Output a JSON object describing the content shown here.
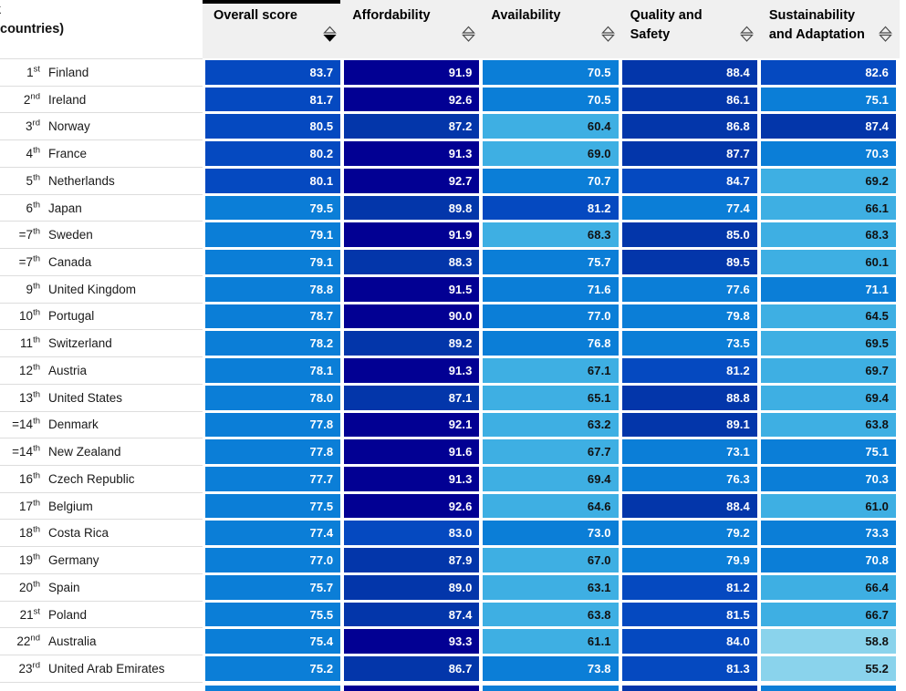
{
  "header": {
    "rank_label_fragment": "k",
    "rank_label_line2": "countries)",
    "sorted_column": "Overall score",
    "sort_direction": "descending"
  },
  "colors": {
    "band_90_plus": "#020093",
    "band_85_89": "#0336aa",
    "band_80_84": "#0549c0",
    "band_70_79": "#0b7ed7",
    "band_60_69": "#3eafe3",
    "band_below_60": "#8ad3ec",
    "header_bg": "#f0f0f0",
    "row_divider": "#dddddd",
    "text_on_dark": "#ffffff",
    "text_on_light": "#111111"
  },
  "chart_data": {
    "type": "heatmap",
    "columns": [
      "Overall score",
      "Affordability",
      "Availability",
      "Quality and Safety",
      "Sustainability and Adaptation"
    ],
    "column_slugs": [
      "overall-score",
      "affordability",
      "availability",
      "quality-and-safety",
      "sustainability-and-adaptation"
    ],
    "value_range": [
      55.2,
      93.3
    ],
    "color_bands": [
      {
        "min": 90,
        "color": "#020093"
      },
      {
        "min": 85,
        "color": "#0336aa"
      },
      {
        "min": 80,
        "color": "#0549c0"
      },
      {
        "min": 70,
        "color": "#0b7ed7"
      },
      {
        "min": 60,
        "color": "#3eafe3"
      },
      {
        "min": 0,
        "color": "#8ad3ec"
      }
    ],
    "rows": [
      {
        "rank": "1",
        "sup": "st",
        "country": "Finland",
        "values": [
          83.7,
          91.9,
          70.5,
          88.4,
          82.6
        ]
      },
      {
        "rank": "2",
        "sup": "nd",
        "country": "Ireland",
        "values": [
          81.7,
          92.6,
          70.5,
          86.1,
          75.1
        ]
      },
      {
        "rank": "3",
        "sup": "rd",
        "country": "Norway",
        "values": [
          80.5,
          87.2,
          60.4,
          86.8,
          87.4
        ]
      },
      {
        "rank": "4",
        "sup": "th",
        "country": "France",
        "values": [
          80.2,
          91.3,
          69.0,
          87.7,
          70.3
        ]
      },
      {
        "rank": "5",
        "sup": "th",
        "country": "Netherlands",
        "values": [
          80.1,
          92.7,
          70.7,
          84.7,
          69.2
        ]
      },
      {
        "rank": "6",
        "sup": "th",
        "country": "Japan",
        "values": [
          79.5,
          89.8,
          81.2,
          77.4,
          66.1
        ]
      },
      {
        "rank": "=7",
        "sup": "th",
        "country": "Sweden",
        "values": [
          79.1,
          91.9,
          68.3,
          85.0,
          68.3
        ]
      },
      {
        "rank": "=7",
        "sup": "th",
        "country": "Canada",
        "values": [
          79.1,
          88.3,
          75.7,
          89.5,
          60.1
        ]
      },
      {
        "rank": "9",
        "sup": "th",
        "country": "United Kingdom",
        "values": [
          78.8,
          91.5,
          71.6,
          77.6,
          71.1
        ]
      },
      {
        "rank": "10",
        "sup": "th",
        "country": "Portugal",
        "values": [
          78.7,
          90.0,
          77.0,
          79.8,
          64.5
        ]
      },
      {
        "rank": "11",
        "sup": "th",
        "country": "Switzerland",
        "values": [
          78.2,
          89.2,
          76.8,
          73.5,
          69.5
        ]
      },
      {
        "rank": "12",
        "sup": "th",
        "country": "Austria",
        "values": [
          78.1,
          91.3,
          67.1,
          81.2,
          69.7
        ]
      },
      {
        "rank": "13",
        "sup": "th",
        "country": "United States",
        "values": [
          78.0,
          87.1,
          65.1,
          88.8,
          69.4
        ]
      },
      {
        "rank": "=14",
        "sup": "th",
        "country": "Denmark",
        "values": [
          77.8,
          92.1,
          63.2,
          89.1,
          63.8
        ]
      },
      {
        "rank": "=14",
        "sup": "th",
        "country": "New Zealand",
        "values": [
          77.8,
          91.6,
          67.7,
          73.1,
          75.1
        ]
      },
      {
        "rank": "16",
        "sup": "th",
        "country": "Czech Republic",
        "values": [
          77.7,
          91.3,
          69.4,
          76.3,
          70.3
        ]
      },
      {
        "rank": "17",
        "sup": "th",
        "country": "Belgium",
        "values": [
          77.5,
          92.6,
          64.6,
          88.4,
          61.0
        ]
      },
      {
        "rank": "18",
        "sup": "th",
        "country": "Costa Rica",
        "values": [
          77.4,
          83.0,
          73.0,
          79.2,
          73.3
        ]
      },
      {
        "rank": "19",
        "sup": "th",
        "country": "Germany",
        "values": [
          77.0,
          87.9,
          67.0,
          79.9,
          70.8
        ]
      },
      {
        "rank": "20",
        "sup": "th",
        "country": "Spain",
        "values": [
          75.7,
          89.0,
          63.1,
          81.2,
          66.4
        ]
      },
      {
        "rank": "21",
        "sup": "st",
        "country": "Poland",
        "values": [
          75.5,
          87.4,
          63.8,
          81.5,
          66.7
        ]
      },
      {
        "rank": "22",
        "sup": "nd",
        "country": "Australia",
        "values": [
          75.4,
          93.3,
          61.1,
          84.0,
          58.8
        ]
      },
      {
        "rank": "23",
        "sup": "rd",
        "country": "United Arab Emirates",
        "values": [
          75.2,
          86.7,
          73.8,
          81.3,
          55.2
        ]
      }
    ],
    "partial_next_row_bands": [
      "band_70_79",
      "band_90_plus",
      "band_70_79",
      "band_85_89",
      "band_70_79"
    ]
  }
}
